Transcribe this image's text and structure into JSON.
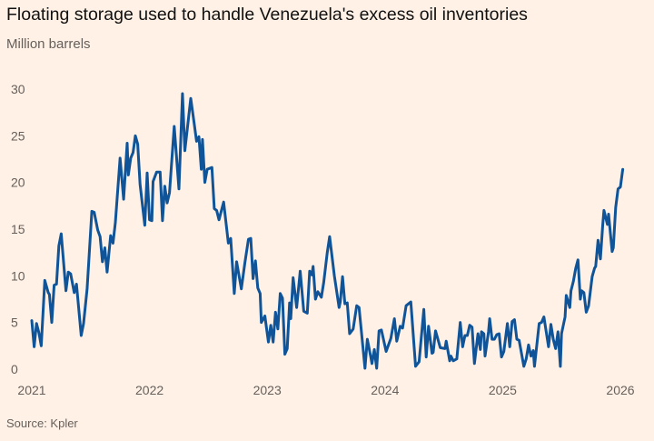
{
  "chart_data": {
    "type": "line",
    "title": "Floating storage used to handle Venezuela's excess oil inventories",
    "subtitle": "Million barrels",
    "source": "Source: Kpler",
    "xlabel": "",
    "ylabel": "",
    "x_unit": "year",
    "xlim": [
      2021,
      2026.1
    ],
    "ylim": [
      0,
      30
    ],
    "x_ticks": [
      "2021",
      "2022",
      "2023",
      "2024",
      "2025",
      "2026"
    ],
    "y_ticks": [
      "0",
      "5",
      "10",
      "15",
      "20",
      "25",
      "30"
    ],
    "grid": false,
    "legend": "none",
    "line_color": "#0f5499",
    "background": "#fff1e5",
    "series": [
      {
        "points": [
          [
            2021.0,
            5.2
          ],
          [
            2021.02,
            2.4
          ],
          [
            2021.04,
            4.9
          ],
          [
            2021.06,
            3.9
          ],
          [
            2021.08,
            2.5
          ],
          [
            2021.11,
            9.5
          ],
          [
            2021.14,
            8.2
          ],
          [
            2021.15,
            8.0
          ],
          [
            2021.17,
            5.0
          ],
          [
            2021.19,
            9.0
          ],
          [
            2021.21,
            9.1
          ],
          [
            2021.23,
            13.2
          ],
          [
            2021.25,
            14.5
          ],
          [
            2021.29,
            8.4
          ],
          [
            2021.31,
            10.4
          ],
          [
            2021.33,
            10.2
          ],
          [
            2021.36,
            8.2
          ],
          [
            2021.38,
            9.1
          ],
          [
            2021.42,
            3.6
          ],
          [
            2021.44,
            4.9
          ],
          [
            2021.47,
            8.6
          ],
          [
            2021.51,
            16.9
          ],
          [
            2021.53,
            16.8
          ],
          [
            2021.56,
            14.9
          ],
          [
            2021.58,
            14.2
          ],
          [
            2021.6,
            11.5
          ],
          [
            2021.62,
            13.0
          ],
          [
            2021.64,
            10.4
          ],
          [
            2021.67,
            14.3
          ],
          [
            2021.69,
            13.5
          ],
          [
            2021.71,
            15.7
          ],
          [
            2021.75,
            22.6
          ],
          [
            2021.78,
            18.2
          ],
          [
            2021.81,
            24.2
          ],
          [
            2021.82,
            20.8
          ],
          [
            2021.84,
            22.6
          ],
          [
            2021.86,
            23.2
          ],
          [
            2021.88,
            25.0
          ],
          [
            2021.9,
            24.1
          ],
          [
            2021.92,
            19.8
          ],
          [
            2021.96,
            15.4
          ],
          [
            2021.98,
            21.0
          ],
          [
            2022.0,
            16.0
          ],
          [
            2022.02,
            15.9
          ],
          [
            2022.03,
            20.1
          ],
          [
            2022.06,
            21.1
          ],
          [
            2022.09,
            21.1
          ],
          [
            2022.11,
            15.9
          ],
          [
            2022.13,
            19.6
          ],
          [
            2022.15,
            17.8
          ],
          [
            2022.17,
            18.9
          ],
          [
            2022.21,
            26.0
          ],
          [
            2022.25,
            19.3
          ],
          [
            2022.28,
            29.5
          ],
          [
            2022.3,
            23.4
          ],
          [
            2022.35,
            29.0
          ],
          [
            2022.38,
            26.3
          ],
          [
            2022.4,
            24.4
          ],
          [
            2022.42,
            24.9
          ],
          [
            2022.44,
            21.4
          ],
          [
            2022.45,
            24.6
          ],
          [
            2022.47,
            20.0
          ],
          [
            2022.49,
            21.4
          ],
          [
            2022.53,
            21.6
          ],
          [
            2022.55,
            17.2
          ],
          [
            2022.57,
            17.0
          ],
          [
            2022.59,
            16.0
          ],
          [
            2022.63,
            17.9
          ],
          [
            2022.67,
            13.5
          ],
          [
            2022.69,
            14.0
          ],
          [
            2022.72,
            8.1
          ],
          [
            2022.74,
            11.5
          ],
          [
            2022.78,
            8.6
          ],
          [
            2022.81,
            11.4
          ],
          [
            2022.84,
            13.9
          ],
          [
            2022.86,
            14.0
          ],
          [
            2022.88,
            9.7
          ],
          [
            2022.9,
            11.6
          ],
          [
            2022.92,
            8.7
          ],
          [
            2022.94,
            8.1
          ],
          [
            2022.95,
            5.0
          ],
          [
            2022.98,
            5.7
          ],
          [
            2023.01,
            2.9
          ],
          [
            2023.03,
            4.7
          ],
          [
            2023.05,
            2.9
          ],
          [
            2023.07,
            6.1
          ],
          [
            2023.09,
            4.3
          ],
          [
            2023.11,
            8.1
          ],
          [
            2023.13,
            7.6
          ],
          [
            2023.15,
            1.6
          ],
          [
            2023.17,
            2.2
          ],
          [
            2023.19,
            7.1
          ],
          [
            2023.2,
            5.4
          ],
          [
            2023.22,
            9.8
          ],
          [
            2023.25,
            6.6
          ],
          [
            2023.28,
            10.5
          ],
          [
            2023.31,
            6.2
          ],
          [
            2023.34,
            6.0
          ],
          [
            2023.36,
            10.5
          ],
          [
            2023.38,
            10.1
          ],
          [
            2023.39,
            11.0
          ],
          [
            2023.41,
            7.5
          ],
          [
            2023.43,
            8.3
          ],
          [
            2023.46,
            7.7
          ],
          [
            2023.48,
            9.3
          ],
          [
            2023.51,
            12.5
          ],
          [
            2023.53,
            14.2
          ],
          [
            2023.57,
            10.0
          ],
          [
            2023.61,
            6.6
          ],
          [
            2023.62,
            7.2
          ],
          [
            2023.64,
            9.9
          ],
          [
            2023.66,
            7.0
          ],
          [
            2023.68,
            7.1
          ],
          [
            2023.7,
            3.8
          ],
          [
            2023.73,
            4.3
          ],
          [
            2023.76,
            6.8
          ],
          [
            2023.78,
            6.6
          ],
          [
            2023.83,
            0.1
          ],
          [
            2023.85,
            3.2
          ],
          [
            2023.88,
            1.3
          ],
          [
            2023.89,
            0.6
          ],
          [
            2023.91,
            2.1
          ],
          [
            2023.93,
            0.1
          ],
          [
            2023.95,
            4.1
          ],
          [
            2023.97,
            4.2
          ],
          [
            2024.01,
            1.9
          ],
          [
            2024.05,
            3.3
          ],
          [
            2024.08,
            5.4
          ],
          [
            2024.1,
            3.0
          ],
          [
            2024.13,
            4.6
          ],
          [
            2024.15,
            4.4
          ],
          [
            2024.18,
            6.8
          ],
          [
            2024.22,
            7.2
          ],
          [
            2024.26,
            0.3
          ],
          [
            2024.29,
            0.8
          ],
          [
            2024.33,
            6.4
          ],
          [
            2024.35,
            1.3
          ],
          [
            2024.37,
            4.6
          ],
          [
            2024.4,
            1.7
          ],
          [
            2024.41,
            1.8
          ],
          [
            2024.43,
            4.1
          ],
          [
            2024.47,
            2.3
          ],
          [
            2024.51,
            2.2
          ],
          [
            2024.52,
            3.0
          ],
          [
            2024.55,
            0.9
          ],
          [
            2024.56,
            1.4
          ],
          [
            2024.58,
            0.9
          ],
          [
            2024.61,
            1.1
          ],
          [
            2024.64,
            5.0
          ],
          [
            2024.66,
            2.4
          ],
          [
            2024.68,
            3.6
          ],
          [
            2024.7,
            3.6
          ],
          [
            2024.72,
            4.7
          ],
          [
            2024.74,
            4.5
          ],
          [
            2024.76,
            0.6
          ],
          [
            2024.79,
            3.8
          ],
          [
            2024.81,
            2.1
          ],
          [
            2024.82,
            4.0
          ],
          [
            2024.84,
            3.8
          ],
          [
            2024.85,
            1.4
          ],
          [
            2024.88,
            4.0
          ],
          [
            2024.89,
            5.4
          ],
          [
            2024.91,
            3.2
          ],
          [
            2024.93,
            3.2
          ],
          [
            2024.95,
            3.7
          ],
          [
            2024.97,
            3.8
          ],
          [
            2024.99,
            1.3
          ],
          [
            2025.01,
            1.9
          ],
          [
            2025.04,
            4.9
          ],
          [
            2025.06,
            2.4
          ],
          [
            2025.08,
            5.1
          ],
          [
            2025.1,
            5.3
          ],
          [
            2025.12,
            3.2
          ],
          [
            2025.14,
            3.1
          ],
          [
            2025.18,
            0.3
          ],
          [
            2025.2,
            1.1
          ],
          [
            2025.22,
            2.6
          ],
          [
            2025.24,
            1.4
          ],
          [
            2025.26,
            2.0
          ],
          [
            2025.27,
            0.3
          ],
          [
            2025.31,
            4.9
          ],
          [
            2025.33,
            5.0
          ],
          [
            2025.35,
            5.6
          ],
          [
            2025.39,
            2.4
          ],
          [
            2025.41,
            4.8
          ],
          [
            2025.43,
            3.2
          ],
          [
            2025.45,
            2.2
          ],
          [
            2025.47,
            4.0
          ],
          [
            2025.49,
            0.3
          ],
          [
            2025.5,
            3.8
          ],
          [
            2025.53,
            5.6
          ],
          [
            2025.54,
            7.9
          ],
          [
            2025.57,
            6.6
          ],
          [
            2025.58,
            8.4
          ],
          [
            2025.6,
            9.4
          ],
          [
            2025.62,
            10.8
          ],
          [
            2025.64,
            11.7
          ],
          [
            2025.66,
            7.5
          ],
          [
            2025.67,
            8.4
          ],
          [
            2025.69,
            8.2
          ],
          [
            2025.71,
            6.1
          ],
          [
            2025.73,
            6.8
          ],
          [
            2025.76,
            9.9
          ],
          [
            2025.78,
            10.8
          ],
          [
            2025.79,
            11.0
          ],
          [
            2025.81,
            13.8
          ],
          [
            2025.83,
            11.8
          ],
          [
            2025.85,
            15.5
          ],
          [
            2025.86,
            17.0
          ],
          [
            2025.89,
            15.5
          ],
          [
            2025.9,
            16.6
          ],
          [
            2025.93,
            12.6
          ],
          [
            2025.94,
            13.0
          ],
          [
            2025.96,
            17.3
          ],
          [
            2025.98,
            19.3
          ],
          [
            2026.0,
            19.5
          ],
          [
            2026.02,
            21.4
          ]
        ]
      }
    ]
  }
}
